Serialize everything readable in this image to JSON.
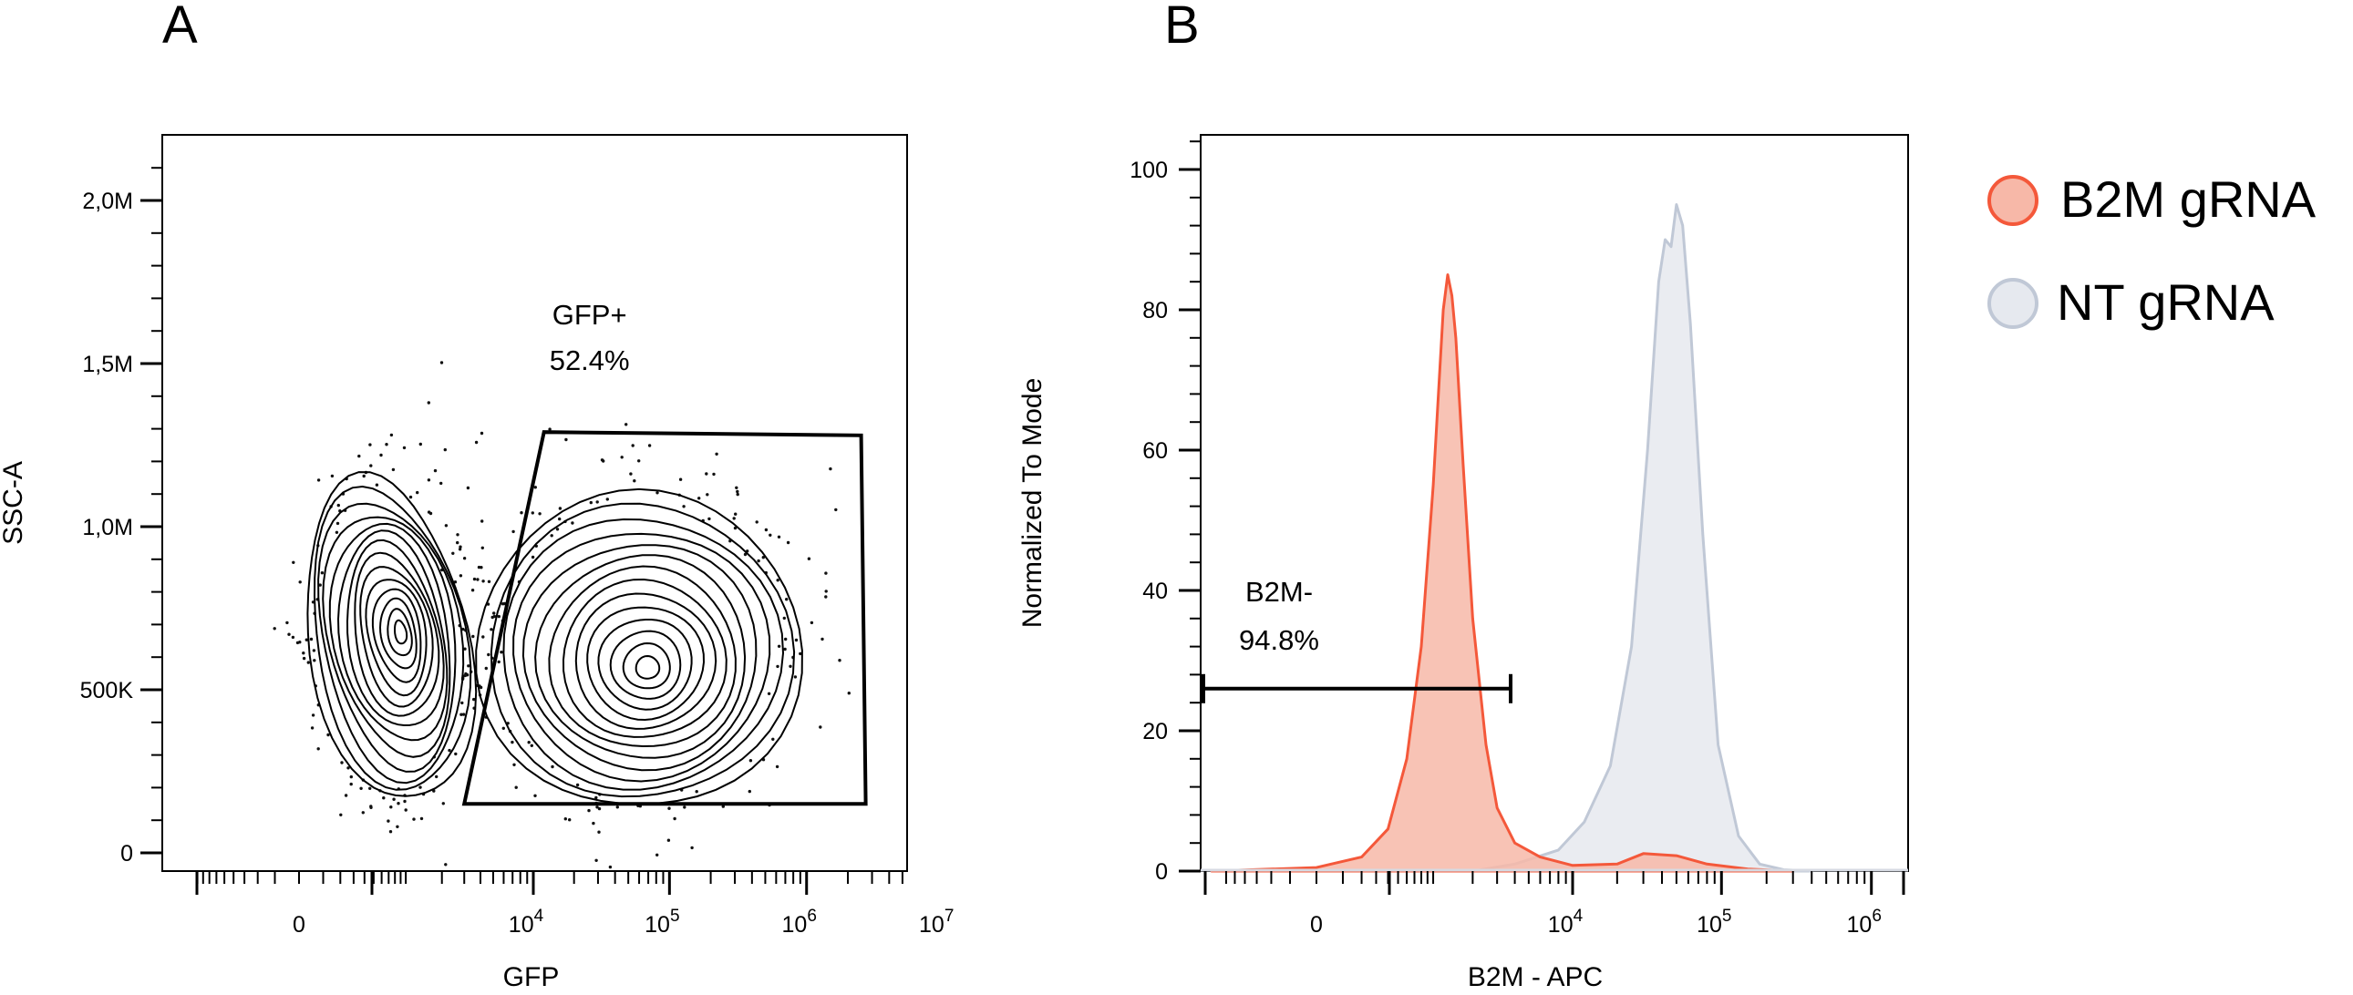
{
  "chart_data": [
    {
      "panel": "A",
      "type": "scatter",
      "subtype": "flow-cytometry contour plot",
      "xlabel": "GFP",
      "ylabel": "SSC-A",
      "x_scale": "biexponential",
      "x_tick_labels": [
        "0",
        "10",
        "10",
        "10",
        "10"
      ],
      "x_tick_exponents": [
        "",
        "4",
        "5",
        "6",
        "7"
      ],
      "x_tick_values": [
        0,
        10000,
        100000,
        1000000,
        10000000
      ],
      "y_tick_labels": [
        "0",
        "500K",
        "1,0M",
        "1,5M",
        "2,0M"
      ],
      "y_tick_values": [
        0,
        500000,
        1000000,
        1500000,
        2000000
      ],
      "ylim": [
        0,
        2200000
      ],
      "populations": [
        {
          "name": "GFP- population",
          "center_gfp": 700,
          "center_ssc": 650000
        },
        {
          "name": "GFP+ population",
          "center_gfp": 60000,
          "center_ssc": 620000
        }
      ],
      "gate": {
        "name": "GFP+",
        "percent": "52.4%",
        "vertices": [
          [
            3000,
            150000
          ],
          [
            12000,
            1290000
          ],
          [
            2500000,
            1280000
          ],
          [
            2700000,
            150000
          ]
        ]
      }
    },
    {
      "panel": "B",
      "type": "area",
      "subtype": "flow-cytometry histogram",
      "xlabel": "B2M - APC",
      "ylabel": "Normalized To Mode",
      "x_scale": "biexponential",
      "x_tick_labels": [
        "0",
        "10",
        "10",
        "10"
      ],
      "x_tick_exponents": [
        "",
        "4",
        "5",
        "6"
      ],
      "x_tick_values": [
        0,
        10000,
        100000,
        1000000
      ],
      "y_tick_labels": [
        "0",
        "20",
        "40",
        "60",
        "80",
        "100"
      ],
      "y_tick_values": [
        0,
        20,
        40,
        60,
        80,
        100
      ],
      "ylim": [
        0,
        100
      ],
      "series": [
        {
          "name": "B2M gRNA",
          "color": "#f4583a",
          "fill": "#f7b8a8",
          "x": [
            -800,
            0,
            200,
            400,
            600,
            800,
            1000,
            1100,
            1200,
            1300,
            1400,
            1500,
            1700,
            2000,
            2500,
            3000,
            4000,
            6000,
            10000,
            20000,
            30000,
            50000,
            80000,
            150000,
            300000
          ],
          "values": [
            0,
            0.5,
            2,
            6,
            16,
            32,
            55,
            68,
            80,
            85,
            82,
            76,
            58,
            36,
            18,
            9,
            4,
            2,
            0.8,
            1,
            2.5,
            2.2,
            1,
            0.3,
            0
          ]
        },
        {
          "name": "NT gRNA",
          "color": "#c0c8d6",
          "fill": "#e6e9ef",
          "x": [
            2000,
            4000,
            8000,
            12000,
            18000,
            25000,
            32000,
            38000,
            42000,
            46000,
            50000,
            55000,
            62000,
            75000,
            95000,
            130000,
            180000,
            260000,
            400000
          ],
          "values": [
            0,
            1,
            3,
            7,
            15,
            32,
            60,
            84,
            90,
            89,
            95,
            92,
            78,
            48,
            18,
            5,
            1,
            0.2,
            0
          ]
        }
      ],
      "gate": {
        "name": "B2M-",
        "percent": "94.8%",
        "x_range": [
          -1000,
          7000
        ],
        "y": 26
      }
    }
  ],
  "panels": {
    "a_letter": "A",
    "b_letter": "B"
  },
  "legend": {
    "items": [
      {
        "label": "B2M gRNA",
        "fill": "#f7b8a8",
        "stroke": "#f4583a"
      },
      {
        "label": "NT gRNA",
        "fill": "#e6e9ef",
        "stroke": "#c0c8d6"
      }
    ]
  }
}
